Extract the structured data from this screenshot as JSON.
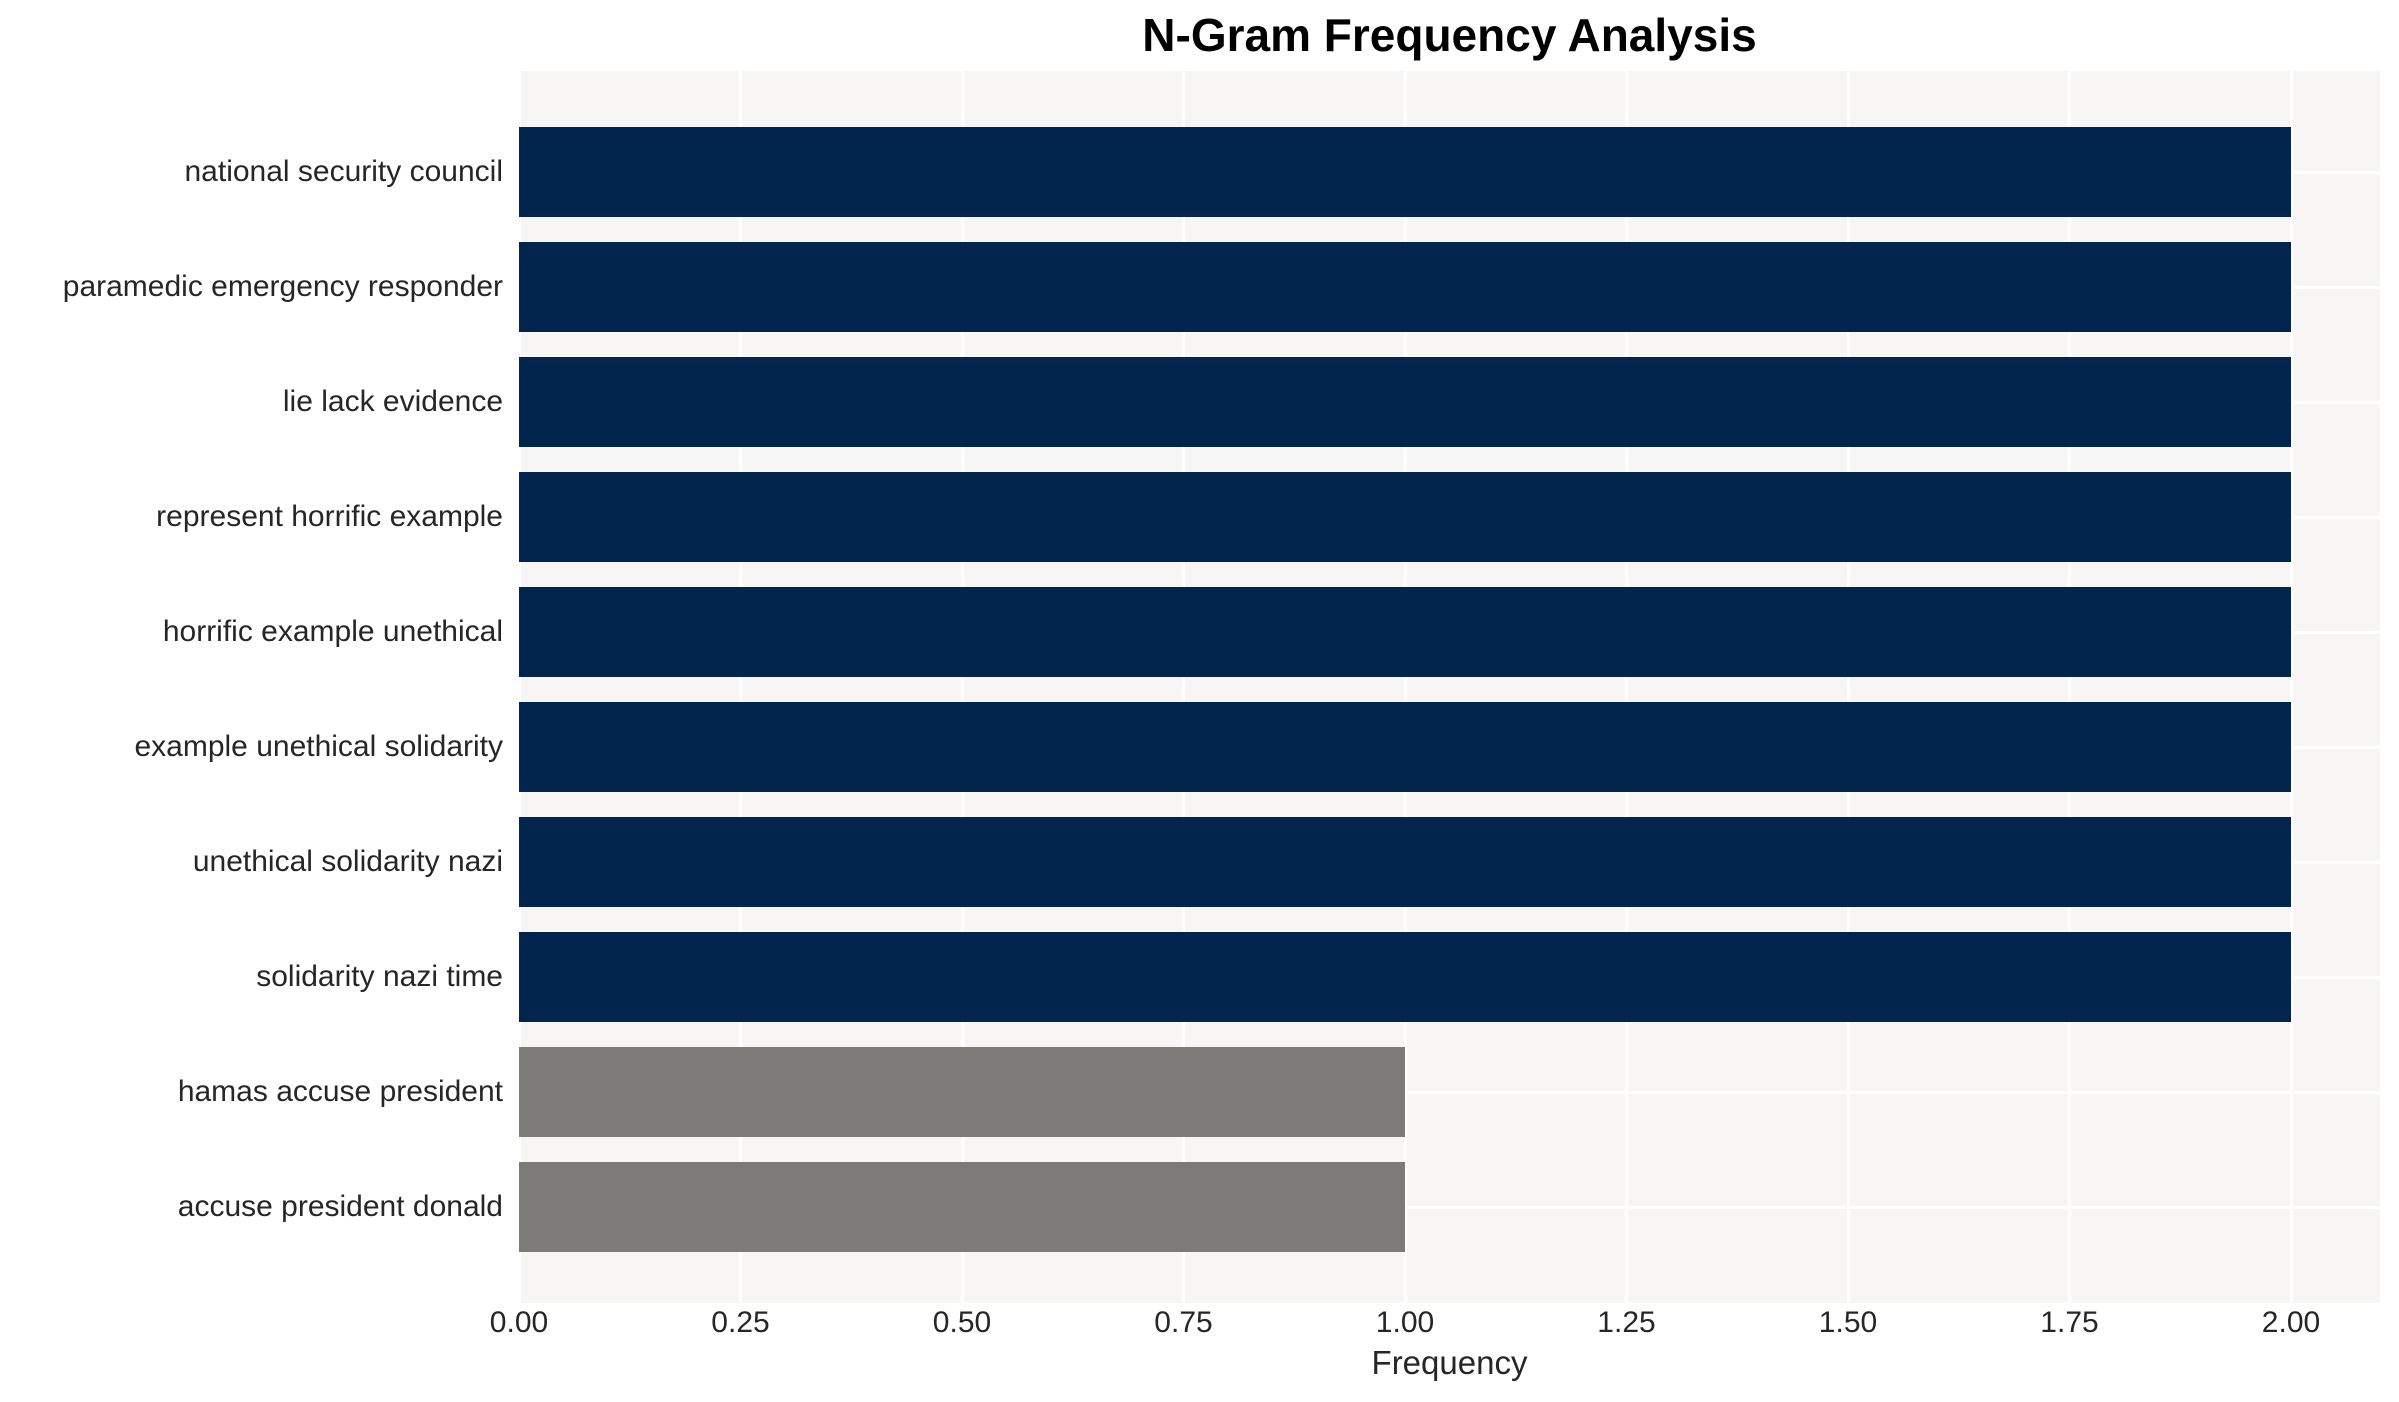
{
  "title": "N-Gram Frequency Analysis",
  "colors": {
    "high_bar": "#02254d",
    "low_bar": "#7c7b77",
    "plot_background": "#f7f6f5",
    "gridline": "#ffffff",
    "text": "#262626",
    "title_text": "#000000"
  },
  "chart_data": {
    "type": "bar",
    "orientation": "horizontal",
    "title": "N-Gram Frequency Analysis",
    "xlabel": "Frequency",
    "ylabel": "",
    "categories": [
      "national security council",
      "paramedic emergency responder",
      "lie lack evidence",
      "represent horrific example",
      "horrific example unethical",
      "example unethical solidarity",
      "unethical solidarity nazi",
      "solidarity nazi time",
      "hamas accuse president",
      "accuse president donald"
    ],
    "values": [
      2,
      2,
      2,
      2,
      2,
      2,
      2,
      2,
      1,
      1
    ],
    "bar_colors": [
      "#02254d",
      "#02254d",
      "#02254d",
      "#02254d",
      "#02254d",
      "#02254d",
      "#02254d",
      "#02254d",
      "#7c7b77",
      "#7c7b77"
    ],
    "xlim": [
      0,
      2.1
    ],
    "xtick_values": [
      0,
      0.25,
      0.5,
      0.75,
      1.0,
      1.25,
      1.5,
      1.75,
      2.0
    ],
    "xtick_labels": [
      "0.00",
      "0.25",
      "0.50",
      "0.75",
      "1.00",
      "1.25",
      "1.50",
      "1.75",
      "2.00"
    ],
    "grid": "white gridlines on light-gray plot background (vertical at x ticks, horizontal at category centers)",
    "legend": "none"
  }
}
